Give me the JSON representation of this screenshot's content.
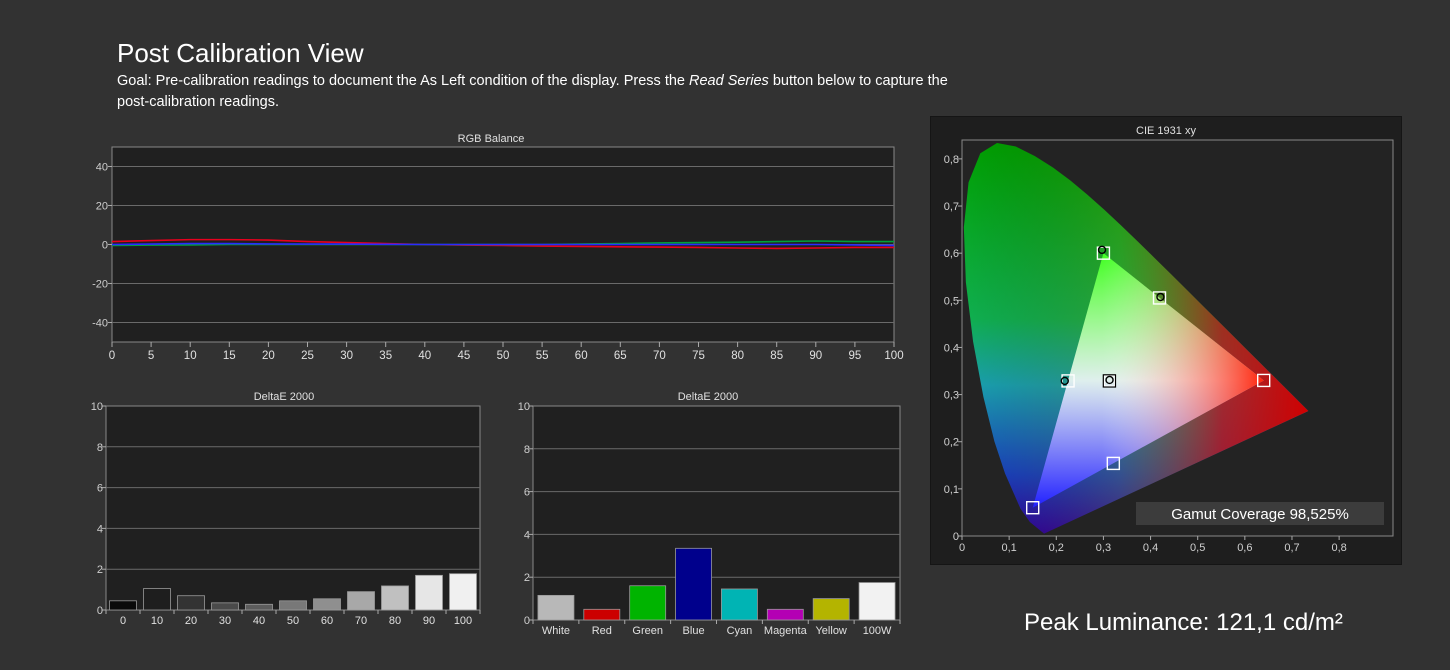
{
  "page": {
    "title": "Post Calibration View",
    "goal_prefix": "Goal: Pre-calibration readings to document the As Left condition of the display. Press the ",
    "goal_emphasis": "Read Series",
    "goal_suffix": " button below to capture the post-calibration readings.",
    "peak_luminance": "Peak Luminance: 121,1 cd/m²",
    "gamut_coverage": "Gamut Coverage 98,525%"
  },
  "chart_data": [
    {
      "type": "line",
      "title": "RGB Balance",
      "x": [
        0,
        5,
        10,
        15,
        20,
        25,
        30,
        35,
        40,
        45,
        50,
        55,
        60,
        65,
        70,
        75,
        80,
        85,
        90,
        95,
        100
      ],
      "xticks": [
        "0",
        "5",
        "10",
        "15",
        "20",
        "25",
        "30",
        "35",
        "40",
        "45",
        "50",
        "55",
        "60",
        "65",
        "70",
        "75",
        "80",
        "85",
        "90",
        "95",
        "100"
      ],
      "ylim": [
        -50,
        50
      ],
      "yticks": [
        "40",
        "20",
        "0",
        "-20",
        "-40"
      ],
      "series": [
        {
          "color": "#e8001e",
          "values": [
            1.5,
            2,
            2.5,
            2.5,
            2.3,
            1.5,
            1,
            0.5,
            0,
            -0.3,
            -0.5,
            -0.8,
            -1,
            -1.2,
            -1.3,
            -1.5,
            -1.8,
            -2,
            -1.8,
            -1.5,
            -1.5
          ]
        },
        {
          "color": "#00a03c",
          "values": [
            -0.5,
            -0.3,
            -0.2,
            0,
            0,
            0,
            0,
            0,
            0,
            0,
            0,
            0,
            0.2,
            0.5,
            0.8,
            1,
            1.2,
            1.5,
            1.8,
            1.5,
            1.5
          ]
        },
        {
          "color": "#2a2aff",
          "values": [
            0,
            0.2,
            0.5,
            0.5,
            0.3,
            0.2,
            0.2,
            0.1,
            0,
            0,
            0,
            0,
            0,
            0,
            0,
            0,
            0,
            0,
            0,
            -0.2,
            -0.5
          ]
        }
      ]
    },
    {
      "type": "bar",
      "title": "DeltaE 2000",
      "categories": [
        "0",
        "10",
        "20",
        "30",
        "40",
        "50",
        "60",
        "70",
        "80",
        "90",
        "100"
      ],
      "values": [
        0.45,
        1.05,
        0.7,
        0.35,
        0.28,
        0.45,
        0.55,
        0.9,
        1.18,
        1.7,
        1.78
      ],
      "colors": [
        "#0a0a0a",
        "#1e1e1e",
        "#333333",
        "#4a4a4a",
        "#5c5c5c",
        "#787878",
        "#8f8f8f",
        "#a8a8a8",
        "#c0c0c0",
        "#e6e6e6",
        "#f0f0f0"
      ],
      "ylim": [
        0,
        10
      ],
      "yticks": [
        "10",
        "8",
        "6",
        "4",
        "2",
        "0"
      ]
    },
    {
      "type": "bar",
      "title": "DeltaE 2000",
      "categories": [
        "White",
        "Red",
        "Green",
        "Blue",
        "Cyan",
        "Magenta",
        "Yellow",
        "100W"
      ],
      "values": [
        1.15,
        0.5,
        1.6,
        3.35,
        1.45,
        0.5,
        1.0,
        1.75
      ],
      "colors": [
        "#b8b8b8",
        "#cc0000",
        "#00b400",
        "#00008c",
        "#00b4b4",
        "#b400b4",
        "#b4b400",
        "#f2f2f2"
      ],
      "ylim": [
        0,
        10
      ],
      "yticks": [
        "10",
        "8",
        "6",
        "4",
        "2",
        "0"
      ]
    },
    {
      "type": "scatter",
      "title": "CIE 1931 xy",
      "xlim": [
        0,
        0.85
      ],
      "ylim": [
        0,
        0.85
      ],
      "xticks": [
        "0",
        "0,1",
        "0,2",
        "0,3",
        "0,4",
        "0,5",
        "0,6",
        "0,7",
        "0,8"
      ],
      "yticks": [
        "0,8",
        "0,7",
        "0,6",
        "0,5",
        "0,4",
        "0,3",
        "0,2",
        "0,1",
        "0"
      ],
      "targets": [
        {
          "name": "Red",
          "x": 0.64,
          "y": 0.33
        },
        {
          "name": "Green",
          "x": 0.3,
          "y": 0.6
        },
        {
          "name": "Blue",
          "x": 0.15,
          "y": 0.06
        },
        {
          "name": "Cyan",
          "x": 0.225,
          "y": 0.329
        },
        {
          "name": "Magenta",
          "x": 0.321,
          "y": 0.154
        },
        {
          "name": "Yellow",
          "x": 0.419,
          "y": 0.505
        },
        {
          "name": "White",
          "x": 0.3127,
          "y": 0.329
        }
      ],
      "measured": [
        {
          "x": 0.297,
          "y": 0.607
        },
        {
          "x": 0.421,
          "y": 0.507
        },
        {
          "x": 0.218,
          "y": 0.329
        },
        {
          "x": 0.313,
          "y": 0.331
        }
      ]
    }
  ]
}
